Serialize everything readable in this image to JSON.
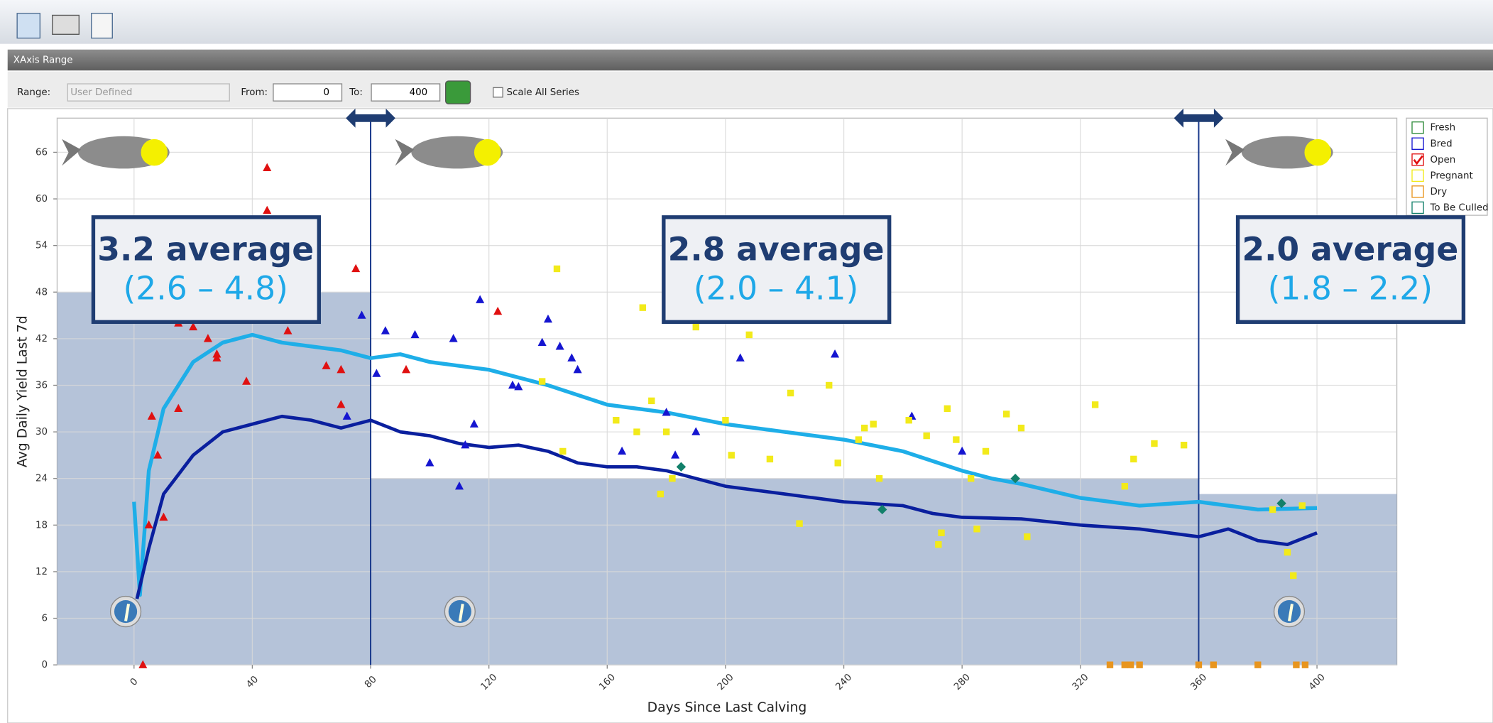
{
  "toolbar": {
    "panel_title": "XAxis Range",
    "range_label": "Range:",
    "range_value": "User Defined",
    "from_label": "From:",
    "from_value": "0",
    "to_label": "To:",
    "to_value": "400",
    "scale_all": "Scale All Series"
  },
  "chart_data": {
    "type": "scatter",
    "xlabel": "Days Since Last Calving",
    "ylabel": "Avg Daily Yield Last 7d",
    "xlim": [
      -26,
      427
    ],
    "ylim": [
      0,
      70.4
    ],
    "xticks": [
      0,
      40,
      80,
      120,
      160,
      200,
      240,
      280,
      320,
      360,
      400
    ],
    "yticks": [
      0,
      6,
      12,
      18,
      24,
      30,
      36,
      42,
      48,
      54,
      60,
      66
    ],
    "grid": true,
    "bands": [
      {
        "x": [
          -26,
          80
        ],
        "y": 48
      },
      {
        "x": [
          80,
          360
        ],
        "y": 24
      },
      {
        "x": [
          360,
          427
        ],
        "y": 22
      }
    ],
    "vlines": [
      80,
      360
    ],
    "annotations": [
      {
        "title": "3.2 average",
        "range": "(2.6 – 4.8)"
      },
      {
        "title": "2.8 average",
        "range": "(2.0 – 4.1)"
      },
      {
        "title": "2.0 average",
        "range": "(1.8 – 2.2)"
      }
    ],
    "lines": [
      {
        "color": "#1eaee8",
        "x": [
          0,
          2,
          5,
          10,
          20,
          30,
          40,
          50,
          60,
          70,
          80,
          90,
          100,
          120,
          140,
          160,
          180,
          200,
          220,
          240,
          260,
          280,
          290,
          300,
          320,
          340,
          360,
          380,
          400
        ],
        "values": [
          21,
          9,
          25,
          33,
          39,
          41.5,
          42.5,
          41.5,
          41,
          40.5,
          39.5,
          40,
          39,
          38,
          36,
          33.5,
          32.5,
          31,
          30,
          29,
          27.5,
          25,
          24,
          23.3,
          21.5,
          20.5,
          21,
          20,
          20.2
        ]
      },
      {
        "color": "#0a1f9e",
        "x": [
          1,
          5,
          10,
          20,
          30,
          40,
          50,
          60,
          70,
          80,
          90,
          100,
          110,
          120,
          130,
          140,
          150,
          160,
          170,
          180,
          200,
          220,
          240,
          260,
          270,
          280,
          300,
          320,
          340,
          360,
          370,
          380,
          390,
          400
        ],
        "values": [
          8.5,
          15,
          22,
          27,
          30,
          31,
          32,
          31.5,
          30.5,
          31.5,
          30,
          29.5,
          28.5,
          28,
          28.3,
          27.5,
          26,
          25.5,
          25.5,
          25,
          23,
          22,
          21,
          20.5,
          19.5,
          19,
          18.8,
          18,
          17.5,
          16.5,
          17.5,
          16,
          15.5,
          17
        ]
      }
    ],
    "series": [
      {
        "name": "Fresh",
        "color": "#2e8b3a",
        "marker": "square",
        "x": [],
        "values": []
      },
      {
        "name": "Bred",
        "color": "#1515d0",
        "marker": "triangle",
        "x": [
          72,
          77,
          82,
          85,
          95,
          100,
          108,
          110,
          112,
          115,
          117,
          128,
          130,
          138,
          140,
          144,
          148,
          150,
          165,
          180,
          183,
          190,
          205,
          237,
          263,
          280
        ],
        "values": [
          32,
          45,
          37.5,
          43,
          42.5,
          26,
          42,
          23,
          28.3,
          31,
          47,
          36,
          35.8,
          41.5,
          44.5,
          41,
          39.5,
          38,
          27.5,
          32.5,
          27,
          30,
          39.5,
          40,
          32,
          27.5
        ]
      },
      {
        "name": "Open",
        "color": "#e01010",
        "marker": "triangle",
        "x": [
          3,
          5,
          6,
          8,
          10,
          15,
          15,
          20,
          25,
          28,
          28,
          38,
          45,
          45,
          52,
          65,
          70,
          70,
          75,
          92,
          123
        ],
        "values": [
          0,
          18,
          32,
          27,
          19,
          33,
          44,
          43.5,
          42,
          39.5,
          40,
          36.5,
          64,
          58.5,
          43,
          38.5,
          33.5,
          38,
          51,
          38,
          45.5
        ]
      },
      {
        "name": "Pregnant",
        "color": "#f2ea1a",
        "marker": "square",
        "x": [
          138,
          143,
          145,
          163,
          170,
          172,
          175,
          178,
          180,
          182,
          190,
          200,
          202,
          208,
          215,
          222,
          225,
          235,
          238,
          245,
          247,
          250,
          252,
          262,
          268,
          272,
          273,
          275,
          278,
          283,
          285,
          288,
          295,
          300,
          302,
          325,
          335,
          338,
          345,
          355,
          385,
          390,
          392,
          395
        ],
        "values": [
          36.5,
          51,
          27.5,
          31.5,
          30,
          46,
          34,
          22,
          30,
          24,
          43.5,
          31.5,
          27,
          42.5,
          26.5,
          35,
          18.2,
          36,
          26,
          29,
          30.5,
          31,
          24,
          31.5,
          29.5,
          15.5,
          17,
          33,
          29,
          24,
          17.5,
          27.5,
          32.3,
          30.5,
          16.5,
          33.5,
          23,
          26.5,
          28.5,
          28.3,
          20,
          14.5,
          11.5,
          20.5
        ]
      },
      {
        "name": "Dry",
        "color": "#e8951e",
        "marker": "square",
        "x": [
          330,
          335,
          337,
          340,
          360,
          365,
          380,
          393,
          396
        ],
        "values": [
          0,
          0,
          0,
          0,
          0,
          0,
          0,
          0,
          0
        ]
      },
      {
        "name": "To Be Culled",
        "color": "#12806a",
        "marker": "diamond",
        "x": [
          185,
          253,
          298,
          388
        ],
        "values": [
          25.5,
          20,
          24,
          20.8
        ]
      }
    ]
  }
}
